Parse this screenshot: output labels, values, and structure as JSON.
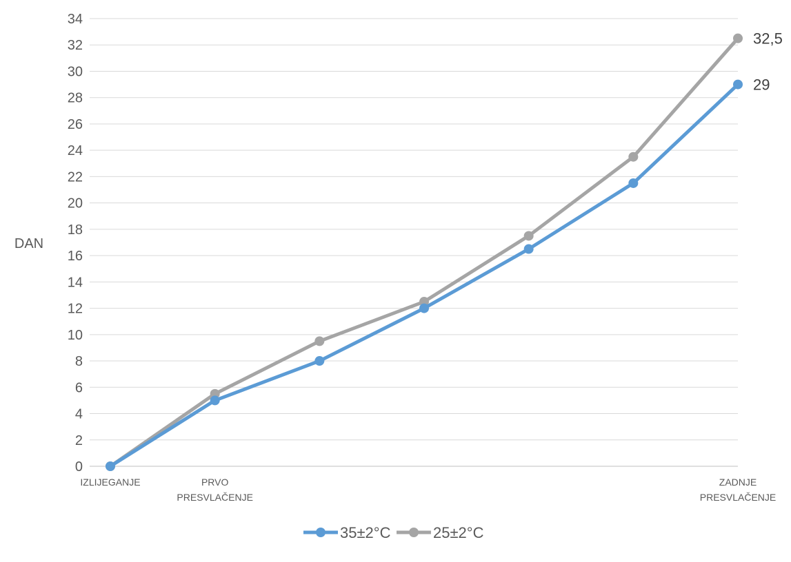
{
  "chart_data": {
    "type": "line",
    "title": "",
    "ylabel": "DAN",
    "xlabel": "",
    "categories": [
      "IZLIJEGANJE",
      "PRVO PRESVLAČENJE",
      "",
      "",
      "",
      "",
      "ZADNJE PRESVLAČENJE"
    ],
    "category_lines": [
      [
        "IZLIJEGANJE"
      ],
      [
        "PRVO",
        "PRESVLAČENJE"
      ],
      [],
      [],
      [],
      [],
      [
        "ZADNJE",
        "PRESVLAČENJE"
      ]
    ],
    "ylim": [
      0,
      34
    ],
    "yticks": [
      0,
      2,
      4,
      6,
      8,
      10,
      12,
      14,
      16,
      18,
      20,
      22,
      24,
      26,
      28,
      30,
      32,
      34
    ],
    "grid": true,
    "legend_position": "bottom",
    "series": [
      {
        "name": "35±2°C",
        "color": "#5b9bd5",
        "values": [
          0,
          5,
          8,
          12,
          16.5,
          21.5,
          29
        ],
        "end_label": "29"
      },
      {
        "name": "25±2°C",
        "color": "#a5a5a5",
        "values": [
          0,
          5.5,
          9.5,
          12.5,
          17.5,
          23.5,
          32.5
        ],
        "end_label": "32,5"
      }
    ]
  }
}
